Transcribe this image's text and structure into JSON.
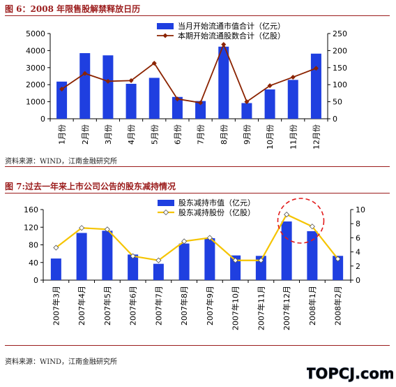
{
  "figure6": {
    "title": "图 6：2008 年限售股解禁释放日历",
    "source": "资料来源：WIND，江南金融研究所"
  },
  "figure7": {
    "title": "图 7:过去一年来上市公司公告的股东减持情况",
    "source": "资料来源：WIND，江南金融研究所"
  },
  "logo": {
    "text": "TOPCJ.com"
  },
  "colors": {
    "title_red": "#9b1c1c",
    "bar_blue": "#1f3fe0",
    "line_brown": "#8b2300",
    "line_yellow": "#f5c400",
    "circle_red": "#e21b1b"
  },
  "chart_data": [
    {
      "type": "bar+line",
      "categories": [
        "1月份",
        "2月份",
        "3月份",
        "4月份",
        "5月份",
        "6月份",
        "7月份",
        "8月份",
        "9月份",
        "10月份",
        "11月份",
        "12月份"
      ],
      "series": [
        {
          "name": "当月开始流通市值合计（亿元）",
          "type": "bar",
          "axis": "left",
          "values": [
            2180,
            3850,
            3720,
            2050,
            2400,
            1280,
            1040,
            4230,
            920,
            1720,
            2280,
            3820
          ]
        },
        {
          "name": "本期开始流通股数合计（亿股）",
          "type": "line",
          "axis": "right",
          "values": [
            87,
            133,
            110,
            112,
            163,
            58,
            47,
            218,
            50,
            97,
            122,
            148
          ]
        }
      ],
      "ylim_left": [
        0,
        5000
      ],
      "yticks_left": [
        0,
        1000,
        2000,
        3000,
        4000,
        5000
      ],
      "ylim_right": [
        0,
        250
      ],
      "yticks_right": [
        0,
        50,
        100,
        150,
        200,
        250
      ],
      "legend": "top-right",
      "grid": false
    },
    {
      "type": "bar+line",
      "categories": [
        "2007年3月",
        "2007年4月",
        "2007年5月",
        "2007年6月",
        "2007年7月",
        "2007年8月",
        "2007年9月",
        "2007年10月",
        "2007年11月",
        "2007年12月",
        "2008年1月",
        "2008年2月"
      ],
      "series": [
        {
          "name": "股东减持市值（亿元）",
          "type": "bar",
          "axis": "left",
          "values": [
            49,
            107,
            112,
            58,
            37,
            83,
            95,
            56,
            55,
            133,
            111,
            55
          ]
        },
        {
          "name": "股东减持股份（亿股）",
          "type": "line",
          "axis": "right",
          "values": [
            4.6,
            7.4,
            7.2,
            3.4,
            2.8,
            5.5,
            6.0,
            2.8,
            2.8,
            9.3,
            7.6,
            3.0
          ]
        }
      ],
      "ylim_left": [
        0,
        160
      ],
      "yticks_left": [
        0,
        40,
        80,
        120,
        160
      ],
      "ylim_right": [
        0,
        10
      ],
      "yticks_right": [
        0,
        2,
        4,
        6,
        8,
        10
      ],
      "legend": "top-center",
      "grid": false,
      "annotation": "dashed red circle around 2007年12月–2008年1月"
    }
  ]
}
